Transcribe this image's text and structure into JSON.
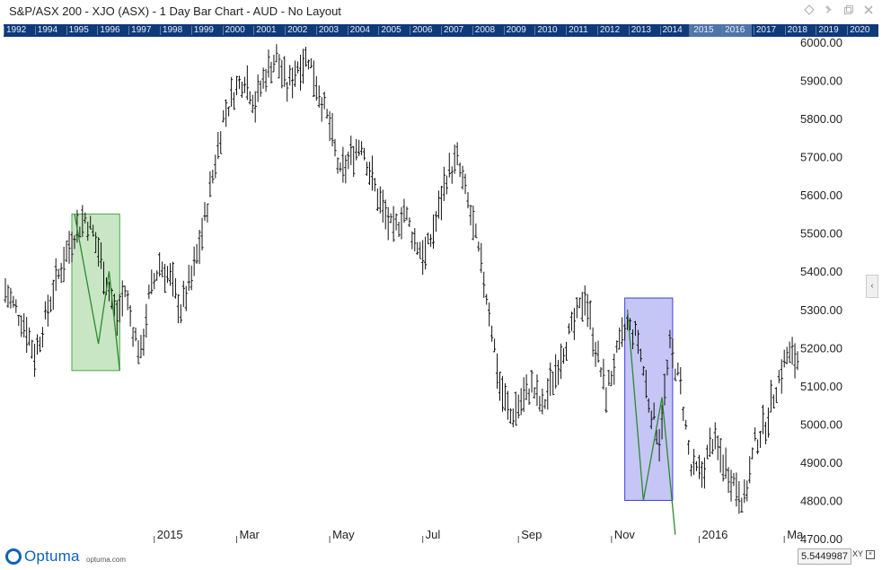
{
  "window": {
    "title": "S&P/ASX 200 - XJO (ASX) - 1 Day Bar Chart - AUD - No Layout",
    "icons": [
      "diamond-icon",
      "pin-icon",
      "restore-icon",
      "close-icon"
    ]
  },
  "navigator": {
    "years": [
      "1992",
      "1994",
      "1995",
      "1996",
      "1997",
      "1998",
      "1999",
      "2000",
      "2001",
      "2002",
      "2003",
      "2004",
      "2005",
      "2006",
      "2007",
      "2008",
      "2009",
      "2010",
      "2011",
      "2012",
      "2013",
      "2014",
      "2015",
      "2016",
      "2017",
      "2018",
      "2019",
      "2020"
    ],
    "selected_range": [
      "2015",
      "2016"
    ]
  },
  "chart_data": {
    "type": "bar",
    "subtype": "ohlc",
    "title": "S&P/ASX 200 - XJO (ASX) - 1 Day Bar Chart - AUD - No Layout",
    "x_tick_labels": [
      "2015",
      "Mar",
      "May",
      "Jul",
      "Sep",
      "Nov",
      "2016",
      "Ma"
    ],
    "y_tick_labels": [
      "4700.00",
      "4800.00",
      "4900.00",
      "5000.00",
      "5100.00",
      "5200.00",
      "5300.00",
      "5400.00",
      "5500.00",
      "5600.00",
      "5700.00",
      "5800.00",
      "5900.00",
      "6000.00"
    ],
    "ylim": [
      4700,
      6000
    ],
    "grid": false,
    "price_path": [
      {
        "t": 0,
        "v": 5350
      },
      {
        "t": 4,
        "v": 5300
      },
      {
        "t": 8,
        "v": 5250
      },
      {
        "t": 11,
        "v": 5180
      },
      {
        "t": 14,
        "v": 5250
      },
      {
        "t": 18,
        "v": 5350
      },
      {
        "t": 22,
        "v": 5430
      },
      {
        "t": 26,
        "v": 5500
      },
      {
        "t": 30,
        "v": 5540
      },
      {
        "t": 33,
        "v": 5500
      },
      {
        "t": 36,
        "v": 5430
      },
      {
        "t": 39,
        "v": 5350
      },
      {
        "t": 42,
        "v": 5280
      },
      {
        "t": 45,
        "v": 5350
      },
      {
        "t": 48,
        "v": 5250
      },
      {
        "t": 51,
        "v": 5180
      },
      {
        "t": 54,
        "v": 5330
      },
      {
        "t": 58,
        "v": 5420
      },
      {
        "t": 62,
        "v": 5380
      },
      {
        "t": 66,
        "v": 5300
      },
      {
        "t": 70,
        "v": 5380
      },
      {
        "t": 74,
        "v": 5500
      },
      {
        "t": 78,
        "v": 5650
      },
      {
        "t": 82,
        "v": 5800
      },
      {
        "t": 86,
        "v": 5870
      },
      {
        "t": 90,
        "v": 5910
      },
      {
        "t": 94,
        "v": 5840
      },
      {
        "t": 98,
        "v": 5920
      },
      {
        "t": 102,
        "v": 5960
      },
      {
        "t": 106,
        "v": 5880
      },
      {
        "t": 110,
        "v": 5940
      },
      {
        "t": 114,
        "v": 5960
      },
      {
        "t": 118,
        "v": 5870
      },
      {
        "t": 122,
        "v": 5780
      },
      {
        "t": 126,
        "v": 5650
      },
      {
        "t": 130,
        "v": 5700
      },
      {
        "t": 134,
        "v": 5740
      },
      {
        "t": 138,
        "v": 5640
      },
      {
        "t": 142,
        "v": 5560
      },
      {
        "t": 146,
        "v": 5500
      },
      {
        "t": 150,
        "v": 5560
      },
      {
        "t": 154,
        "v": 5480
      },
      {
        "t": 158,
        "v": 5440
      },
      {
        "t": 162,
        "v": 5530
      },
      {
        "t": 166,
        "v": 5650
      },
      {
        "t": 170,
        "v": 5690
      },
      {
        "t": 174,
        "v": 5580
      },
      {
        "t": 178,
        "v": 5450
      },
      {
        "t": 182,
        "v": 5300
      },
      {
        "t": 186,
        "v": 5100
      },
      {
        "t": 190,
        "v": 5020
      },
      {
        "t": 194,
        "v": 5060
      },
      {
        "t": 198,
        "v": 5100
      },
      {
        "t": 202,
        "v": 5040
      },
      {
        "t": 206,
        "v": 5120
      },
      {
        "t": 210,
        "v": 5200
      },
      {
        "t": 214,
        "v": 5260
      },
      {
        "t": 218,
        "v": 5340
      },
      {
        "t": 222,
        "v": 5200
      },
      {
        "t": 226,
        "v": 5080
      },
      {
        "t": 230,
        "v": 5180
      },
      {
        "t": 234,
        "v": 5260
      },
      {
        "t": 238,
        "v": 5220
      },
      {
        "t": 242,
        "v": 5060
      },
      {
        "t": 246,
        "v": 4960
      },
      {
        "t": 250,
        "v": 5200
      },
      {
        "t": 254,
        "v": 5100
      },
      {
        "t": 258,
        "v": 4880
      },
      {
        "t": 262,
        "v": 4870
      },
      {
        "t": 266,
        "v": 4960
      },
      {
        "t": 270,
        "v": 4900
      },
      {
        "t": 274,
        "v": 4850
      },
      {
        "t": 278,
        "v": 4800
      },
      {
        "t": 282,
        "v": 4950
      },
      {
        "t": 286,
        "v": 5000
      },
      {
        "t": 290,
        "v": 5100
      },
      {
        "t": 294,
        "v": 5180
      },
      {
        "t": 298,
        "v": 5170
      }
    ],
    "rectangles": [
      {
        "name": "green-rectangle",
        "t0": 25,
        "t1": 43,
        "top": 5550,
        "bottom": 5140,
        "color": "#4aa84a"
      },
      {
        "name": "blue-rectangle",
        "t0": 233,
        "t1": 251,
        "top": 5330,
        "bottom": 4800,
        "color": "#4040d8"
      }
    ],
    "zigzags": [
      {
        "name": "green-zigzag",
        "points": [
          [
            26,
            5550
          ],
          [
            35,
            5210
          ],
          [
            39,
            5400
          ],
          [
            43,
            5140
          ]
        ],
        "color": "#2c8a2c"
      },
      {
        "name": "blue-zigzag",
        "points": [
          [
            234,
            5300
          ],
          [
            240,
            4800
          ],
          [
            247,
            5070
          ],
          [
            252,
            4710
          ]
        ],
        "color": "#2c8a2c"
      }
    ],
    "cursor_value": "5.5449987",
    "xy_label": "XY"
  },
  "footer": {
    "logo_text": "Optuma",
    "logo_url": "optuma.com"
  },
  "colors": {
    "navigator_bg": "#0f3a79",
    "bars": "#111111",
    "green_fill": "#c8e6c4",
    "blue_fill": "#c5c5f6"
  }
}
